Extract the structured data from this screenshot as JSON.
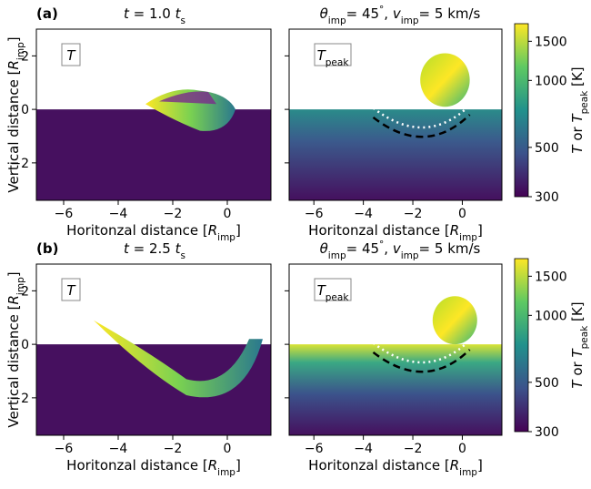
{
  "chart_data": {
    "type": "heatmap-panels",
    "axes": {
      "xlim": [
        -7,
        1.6
      ],
      "ylim": [
        -3.4,
        3
      ],
      "xticks": [
        {
          "value": -6,
          "label": "−6"
        },
        {
          "value": -4,
          "label": "−4"
        },
        {
          "value": -2,
          "label": "−2"
        },
        0
      ],
      "yticks": [
        {
          "value": -2,
          "label": "−2"
        },
        0,
        2
      ],
      "xlabel": [
        "Horitonzal distance [",
        "R",
        "imp",
        "]"
      ],
      "ylabel": [
        "Vertical distance [",
        "R",
        "imp",
        "]"
      ]
    },
    "rows": [
      {
        "label": "(a)",
        "time_title": [
          "t",
          " =  1.0 ",
          "t",
          "s"
        ],
        "params_title": [
          "θ",
          "imp",
          "= 45",
          "°",
          ", ",
          "v",
          "imp",
          "= 5 km/s"
        ],
        "insets": [
          [
            "T"
          ],
          [
            "T",
            "peak"
          ]
        ]
      },
      {
        "label": "(b)",
        "time_title": [
          "t",
          " =  2.5 ",
          "t",
          "s"
        ],
        "params_title": [
          "θ",
          "imp",
          "= 45",
          "°",
          ", ",
          "v",
          "imp",
          "= 5 km/s"
        ],
        "insets": [
          [
            "T"
          ],
          [
            "T",
            "peak"
          ]
        ]
      }
    ],
    "colorbar": {
      "clim": [
        300,
        1800
      ],
      "log": true,
      "ticks": [
        300,
        500,
        1000,
        1500
      ],
      "label": [
        "T",
        " or ",
        "T",
        "peak",
        " [K]"
      ]
    }
  }
}
